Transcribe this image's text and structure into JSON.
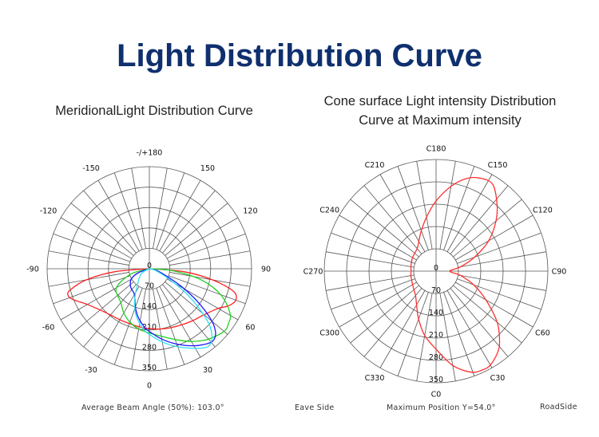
{
  "page": {
    "title": "Light Distribution Curve"
  },
  "chart_data": [
    {
      "type": "polar-line",
      "title": "MeridionalLight Distribution Curve",
      "angle_labels": [
        "0",
        "30",
        "60",
        "90",
        "120",
        "150",
        "-/+180",
        "-150",
        "-120",
        "-90",
        "-60",
        "-30"
      ],
      "angle_label_values": [
        0,
        30,
        60,
        90,
        120,
        150,
        180,
        -150,
        -120,
        -90,
        -60,
        -30
      ],
      "radial_ticks": [
        0,
        70,
        140,
        210,
        280,
        350
      ],
      "radial_range": [
        0,
        350
      ],
      "spoke_step_deg": 10,
      "grid": true,
      "series": [
        {
          "color": "#ff2020",
          "points": [
            [
              -90,
              0
            ],
            [
              -85,
              120
            ],
            [
              -80,
              220
            ],
            [
              -75,
              280
            ],
            [
              -72,
              293
            ],
            [
              -68,
              282
            ],
            [
              -60,
              245
            ],
            [
              -50,
              220
            ],
            [
              -40,
              207
            ],
            [
              -30,
              202
            ],
            [
              -20,
              200
            ],
            [
              -10,
              202
            ],
            [
              0,
              205
            ],
            [
              10,
              210
            ],
            [
              20,
              215
            ],
            [
              30,
              222
            ],
            [
              40,
              232
            ],
            [
              50,
              245
            ],
            [
              60,
              272
            ],
            [
              65,
              300
            ],
            [
              70,
              315
            ],
            [
              75,
              298
            ],
            [
              80,
              220
            ],
            [
              85,
              120
            ],
            [
              90,
              0
            ]
          ]
        },
        {
          "color": "#20d020",
          "points": [
            [
              -90,
              0
            ],
            [
              -75,
              60
            ],
            [
              -65,
              110
            ],
            [
              -58,
              135
            ],
            [
              -50,
              142
            ],
            [
              -40,
              152
            ],
            [
              -30,
              175
            ],
            [
              -20,
              195
            ],
            [
              -10,
              210
            ],
            [
              0,
              220
            ],
            [
              10,
              235
            ],
            [
              20,
              258
            ],
            [
              30,
              288
            ],
            [
              40,
              315
            ],
            [
              50,
              334
            ],
            [
              55,
              330
            ],
            [
              61,
              316
            ],
            [
              70,
              260
            ],
            [
              78,
              180
            ],
            [
              85,
              80
            ],
            [
              90,
              0
            ]
          ]
        },
        {
          "color": "#1a1aff",
          "points": [
            [
              -90,
              0
            ],
            [
              -70,
              40
            ],
            [
              -60,
              72
            ],
            [
              -45,
              90
            ],
            [
              -30,
              102
            ],
            [
              -20,
              140
            ],
            [
              -13,
              170
            ],
            [
              -5,
              200
            ],
            [
              0,
              215
            ],
            [
              10,
              245
            ],
            [
              20,
              275
            ],
            [
              30,
              305
            ],
            [
              38,
              325
            ],
            [
              42,
              329
            ],
            [
              46,
              315
            ],
            [
              50,
              280
            ],
            [
              55,
              210
            ],
            [
              60,
              140
            ],
            [
              65,
              80
            ],
            [
              75,
              30
            ],
            [
              90,
              0
            ]
          ]
        },
        {
          "color": "#30e0f0",
          "points": [
            [
              -90,
              0
            ],
            [
              -60,
              30
            ],
            [
              -40,
              60
            ],
            [
              -25,
              120
            ],
            [
              -15,
              170
            ],
            [
              -5,
              210
            ],
            [
              0,
              225
            ],
            [
              10,
              255
            ],
            [
              20,
              285
            ],
            [
              30,
              315
            ],
            [
              37,
              334
            ],
            [
              42,
              320
            ],
            [
              47,
              280
            ],
            [
              52,
              210
            ],
            [
              57,
              140
            ],
            [
              63,
              70
            ],
            [
              75,
              20
            ],
            [
              90,
              0
            ]
          ]
        }
      ]
    },
    {
      "type": "polar-line",
      "title": "Cone surface Light intensity Distribution Curve at Maximum intensity",
      "title_lines": [
        "Cone surface Light intensity Distribution",
        "Curve at Maximum intensity"
      ],
      "angle_labels": [
        "C0",
        "C30",
        "C60",
        "C90",
        "C120",
        "C150",
        "C180",
        "C210",
        "C240",
        "C270",
        "C300",
        "C330"
      ],
      "angle_label_values": [
        0,
        30,
        60,
        90,
        120,
        150,
        180,
        210,
        240,
        270,
        300,
        330
      ],
      "radial_ticks": [
        0,
        70,
        140,
        210,
        280,
        350
      ],
      "radial_range": [
        0,
        350
      ],
      "spoke_step_deg": 10,
      "grid": true,
      "series": [
        {
          "color": "#ff3030",
          "points": [
            [
              0,
              245
            ],
            [
              10,
              300
            ],
            [
              19,
              335
            ],
            [
              25,
              342
            ],
            [
              30,
              340
            ],
            [
              37,
              320
            ],
            [
              42,
              297
            ],
            [
              50,
              250
            ],
            [
              60,
              180
            ],
            [
              70,
              125
            ],
            [
              80,
              78
            ],
            [
              90,
              43
            ],
            [
              100,
              78
            ],
            [
              110,
              128
            ],
            [
              120,
              190
            ],
            [
              130,
              245
            ],
            [
              138,
              285
            ],
            [
              147,
              325
            ],
            [
              155,
              322
            ],
            [
              162,
              305
            ],
            [
              170,
              270
            ],
            [
              180,
              220
            ],
            [
              190,
              172
            ],
            [
              200,
              135
            ],
            [
              210,
              108
            ],
            [
              220,
              92
            ],
            [
              240,
              85
            ],
            [
              260,
              80
            ],
            [
              270,
              78
            ],
            [
              280,
              80
            ],
            [
              300,
              85
            ],
            [
              320,
              100
            ],
            [
              330,
              122
            ],
            [
              340,
              160
            ],
            [
              350,
              205
            ],
            [
              360,
              245
            ]
          ]
        }
      ]
    }
  ],
  "footer": {
    "beam_angle": "Average Beam Angle (50%): 103.0°",
    "eave_side": "Eave Side",
    "max_position": "Maximum Position Y=54.0°",
    "road_side": "RoadSide"
  }
}
